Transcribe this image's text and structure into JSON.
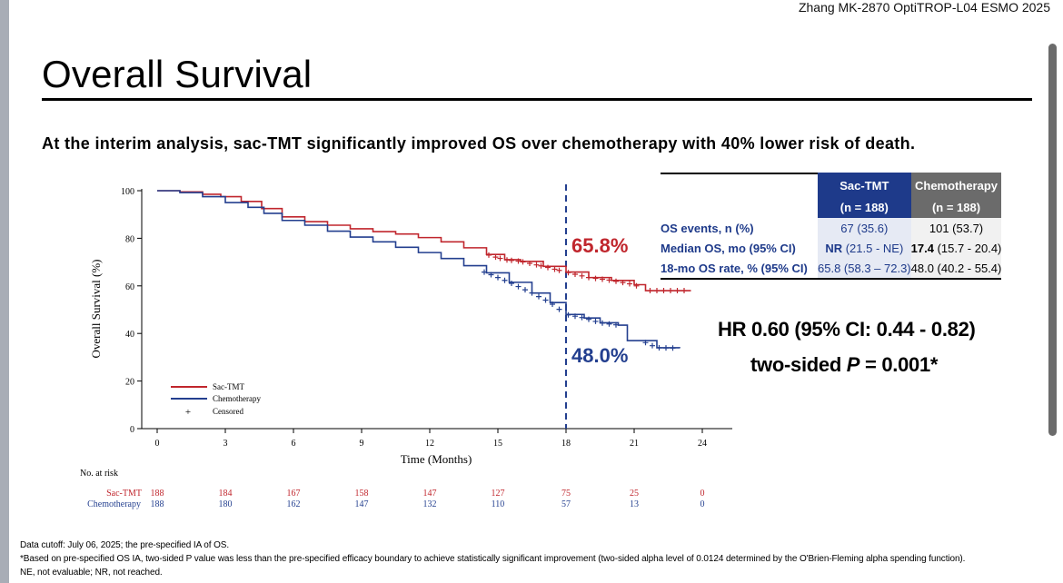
{
  "header": {
    "citation": "Zhang MK-2870 OptiTROP-L04 ESMO 2025",
    "title": "Overall Survival",
    "subtitle": "At the interim analysis, sac-TMT significantly improved OS over chemotherapy with 40% lower risk of death."
  },
  "chart_data": {
    "type": "line",
    "xlabel": "Time (Months)",
    "ylabel": "Overall Survival (%)",
    "xlim": [
      0,
      24
    ],
    "ylim": [
      0,
      100
    ],
    "xticks": [
      0,
      3,
      6,
      9,
      12,
      15,
      18,
      21,
      24
    ],
    "yticks": [
      0,
      20,
      40,
      60,
      80,
      100
    ],
    "reference_line_x": 18,
    "series": [
      {
        "name": "Sac-TMT",
        "color": "#c0262d",
        "points": [
          [
            0,
            100
          ],
          [
            1,
            99.5
          ],
          [
            2,
            98.5
          ],
          [
            2.8,
            97.5
          ],
          [
            3.7,
            95.5
          ],
          [
            4.6,
            92.5
          ],
          [
            5.5,
            89
          ],
          [
            6.5,
            87
          ],
          [
            7.5,
            85.5
          ],
          [
            8.5,
            84
          ],
          [
            9.5,
            82.8
          ],
          [
            10.5,
            81.8
          ],
          [
            11.5,
            80.3
          ],
          [
            12.5,
            78.5
          ],
          [
            13.5,
            76
          ],
          [
            14.5,
            73.2
          ],
          [
            15.3,
            71
          ],
          [
            16,
            70.3
          ],
          [
            17,
            68.2
          ],
          [
            18,
            65.8
          ],
          [
            19,
            63.5
          ],
          [
            20,
            62.3
          ],
          [
            21,
            60.5
          ],
          [
            21.5,
            58
          ],
          [
            22.2,
            58
          ],
          [
            23.5,
            58
          ]
        ],
        "censor_x": [
          14.6,
          14.9,
          15.1,
          15.4,
          15.6,
          15.9,
          16.1,
          16.4,
          16.7,
          16.9,
          17.2,
          17.5,
          17.7,
          18.1,
          18.4,
          18.7,
          19,
          19.3,
          19.6,
          19.9,
          20.2,
          20.5,
          20.8,
          21.1,
          21.7,
          22,
          22.3,
          22.6,
          22.9,
          23.2
        ]
      },
      {
        "name": "Chemotherapy",
        "color": "#233f8f",
        "points": [
          [
            0,
            100
          ],
          [
            1,
            99.2
          ],
          [
            2,
            97.5
          ],
          [
            3,
            95
          ],
          [
            4,
            93
          ],
          [
            4.7,
            90.5
          ],
          [
            5.5,
            87.5
          ],
          [
            6.5,
            85.5
          ],
          [
            7.5,
            83
          ],
          [
            8.5,
            80.5
          ],
          [
            9.5,
            78.5
          ],
          [
            10.5,
            76.2
          ],
          [
            11.5,
            74
          ],
          [
            12.5,
            71.5
          ],
          [
            13.5,
            68.5
          ],
          [
            14.5,
            65.5
          ],
          [
            15.5,
            61.5
          ],
          [
            16.5,
            57
          ],
          [
            17.3,
            53
          ],
          [
            18,
            48
          ],
          [
            18.8,
            46.5
          ],
          [
            19.5,
            44.5
          ],
          [
            20.3,
            43.5
          ],
          [
            20.7,
            37
          ],
          [
            21.3,
            37
          ],
          [
            22,
            34
          ],
          [
            23,
            33.8
          ]
        ],
        "censor_x": [
          14.4,
          14.7,
          15,
          15.3,
          15.6,
          15.9,
          16.2,
          16.5,
          16.8,
          17.1,
          17.4,
          17.7,
          18.1,
          18.4,
          18.7,
          19,
          19.3,
          19.6,
          19.9,
          20.2,
          21.5,
          21.8,
          22.1,
          22.4,
          22.7
        ]
      }
    ],
    "annotations": {
      "sac_rate": "65.8%",
      "chemo_rate": "48.0%"
    },
    "legend": {
      "placement": "bottom-left",
      "items": [
        "Sac-TMT",
        "Chemotherapy",
        "Censored"
      ]
    },
    "at_risk": {
      "label": "No. at risk",
      "rows": [
        {
          "name": "Sac-TMT",
          "values": [
            "188",
            "184",
            "167",
            "158",
            "147",
            "127",
            "75",
            "25",
            "0"
          ]
        },
        {
          "name": "Chemotherapy",
          "values": [
            "188",
            "180",
            "162",
            "147",
            "132",
            "110",
            "57",
            "13",
            "0"
          ]
        }
      ]
    }
  },
  "stats_table": {
    "col_sac": {
      "name": "Sac-TMT",
      "n": "(n = 188)"
    },
    "col_chemo": {
      "name": "Chemotherapy",
      "n": "(n = 188)"
    },
    "rows": [
      {
        "label": "OS events, n (%)",
        "sac": "67 (35.6)",
        "chemo": "101 (53.7)"
      },
      {
        "label": "Median OS, mo (95% CI)",
        "sac_bold": "NR",
        "sac": " (21.5 - NE)",
        "chemo_bold": "17.4",
        "chemo": " (15.7 - 20.4)"
      },
      {
        "label": "18-mo OS rate, % (95% CI)",
        "sac": "65.8 (58.3 – 72.3)",
        "chemo": "48.0 (40.2 - 55.4)"
      }
    ]
  },
  "hazard": {
    "hr": "HR 0.60 (95% CI: 0.44 - 0.82)",
    "p_prefix": "two-sided ",
    "p_symbol": "P",
    "p_value": " = 0.001*"
  },
  "footnotes": [
    "Data cutoff: July 06, 2025; the pre-specified IA of OS.",
    "*Based on pre-specified OS IA, two-sided P value was less than the pre-specified efficacy boundary to achieve statistically significant improvement (two-sided alpha level of 0.0124 determined by the O'Brien-Fleming alpha spending function).",
    "NE, not evaluable; NR, not reached."
  ]
}
